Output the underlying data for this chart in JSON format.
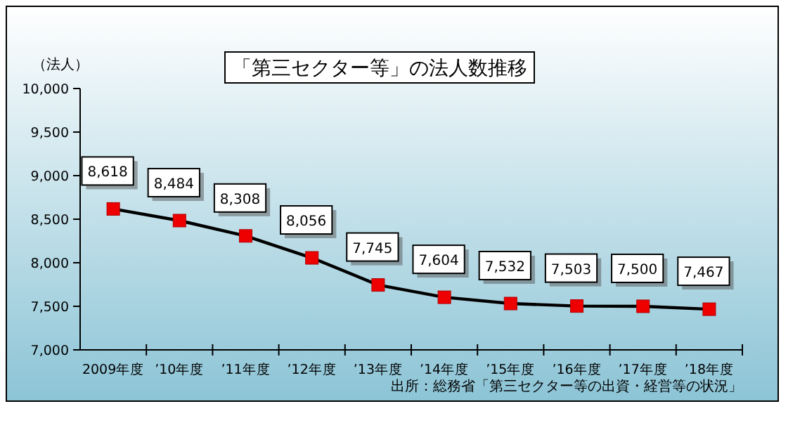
{
  "chart_data": {
    "type": "line",
    "title": "「第三セクター等」の法人数推移",
    "ylabel": "（法人）",
    "categories": [
      "2009年度",
      "’10年度",
      "’11年度",
      "’12年度",
      "’13年度",
      "’14年度",
      "’15年度",
      "’16年度",
      "’17年度",
      "’18年度"
    ],
    "series": [
      {
        "color": "#000000",
        "values": [
          8618,
          8484,
          8308,
          8056,
          7745,
          7604,
          7532,
          7503,
          7500,
          7467
        ],
        "value_labels": [
          "8,618",
          "8,484",
          "8,308",
          "8,056",
          "7,745",
          "7,604",
          "7,532",
          "7,503",
          "7,500",
          "7,467"
        ]
      }
    ],
    "ylim": [
      7000,
      10000
    ],
    "yticks": [
      {
        "value": 7000,
        "label": "7,000"
      },
      {
        "value": 7500,
        "label": "7,500"
      },
      {
        "value": 8000,
        "label": "8,000"
      },
      {
        "value": 8500,
        "label": "8,500"
      },
      {
        "value": 9000,
        "label": "9,000"
      },
      {
        "value": 9500,
        "label": "9,500"
      },
      {
        "value": 10000,
        "label": "10,000"
      }
    ],
    "marker": "square",
    "line_style": "solid",
    "grid": false,
    "annotations": [
      "出所：総務省「第三セクター等の出資・経営等の状況」"
    ]
  }
}
